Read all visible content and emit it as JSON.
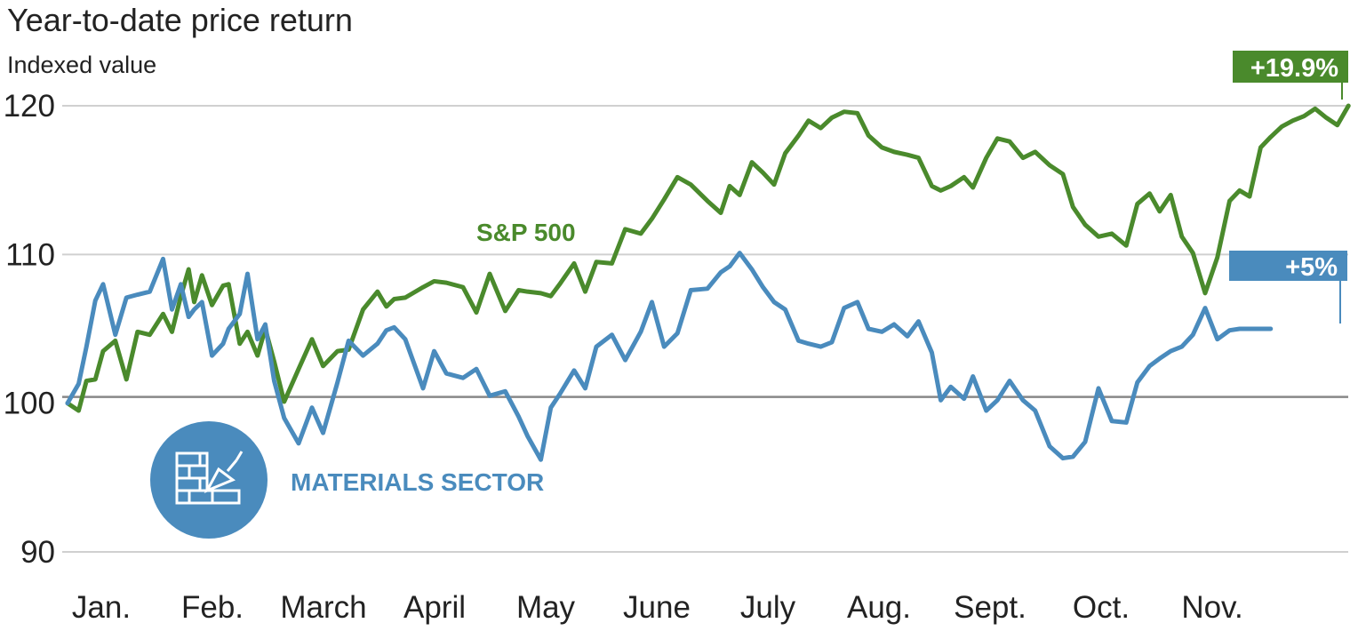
{
  "chart_data": {
    "type": "line",
    "title": "Year-to-date price return",
    "subtitle": "Indexed value",
    "ylabel": "Indexed value",
    "ylim": [
      90,
      120
    ],
    "y_ticks": [
      90,
      100,
      110,
      120
    ],
    "baseline": 100,
    "xlabel": "",
    "x_ticks": [
      "Jan.",
      "Feb.",
      "March",
      "April",
      "May",
      "June",
      "July",
      "Aug.",
      "Sept.",
      "Oct.",
      "Nov."
    ],
    "x_range": [
      0,
      10.9
    ],
    "colors": {
      "sp500": "#4a8a2c",
      "materials": "#4a8bbd",
      "grid": "#d0d0d0",
      "baseline": "#888888"
    },
    "icon": "brick-wall-trowel-icon",
    "series": [
      {
        "name": "S&P 500",
        "label": "S&P 500",
        "end_label": "+19.9%",
        "x": [
          0.0,
          0.1,
          0.17,
          0.25,
          0.32,
          0.43,
          0.53,
          0.63,
          0.74,
          0.86,
          0.94,
          1.02,
          1.09,
          1.14,
          1.21,
          1.3,
          1.4,
          1.45,
          1.55,
          1.62,
          1.71,
          1.78,
          1.86,
          1.95,
          2.08,
          2.2,
          2.3,
          2.43,
          2.53,
          2.66,
          2.79,
          2.87,
          2.94,
          3.04,
          3.2,
          3.3,
          3.41,
          3.56,
          3.68,
          3.8,
          3.94,
          4.06,
          4.14,
          4.26,
          4.35,
          4.43,
          4.56,
          4.66,
          4.76,
          4.9,
          5.02,
          5.16,
          5.26,
          5.37,
          5.49,
          5.61,
          5.76,
          5.88,
          5.96,
          6.05,
          6.16,
          6.26,
          6.36,
          6.46,
          6.58,
          6.67,
          6.78,
          6.88,
          6.99,
          7.11,
          7.21,
          7.33,
          7.44,
          7.56,
          7.66,
          7.78,
          7.86,
          7.95,
          8.07,
          8.15,
          8.27,
          8.37,
          8.48,
          8.6,
          8.71,
          8.84,
          8.96,
          9.05,
          9.16,
          9.28,
          9.4,
          9.53,
          9.63,
          9.74,
          9.83,
          9.93,
          10.03,
          10.13,
          10.24,
          10.35,
          10.46,
          10.55,
          10.64,
          10.74,
          10.83
        ],
        "values": [
          100.0,
          99.5,
          101.5,
          101.6,
          103.5,
          104.2,
          101.6,
          104.8,
          104.6,
          106.0,
          104.8,
          107.2,
          109.0,
          106.8,
          108.6,
          106.6,
          107.9,
          108.0,
          104.0,
          104.8,
          103.2,
          105.0,
          102.8,
          100.1,
          102.3,
          104.3,
          102.5,
          103.5,
          103.6,
          106.3,
          107.5,
          106.5,
          107.0,
          107.1,
          107.8,
          108.2,
          108.1,
          107.8,
          106.1,
          108.7,
          106.2,
          107.6,
          107.5,
          107.4,
          107.2,
          108.0,
          109.4,
          107.5,
          109.5,
          109.4,
          111.7,
          111.4,
          112.4,
          113.7,
          115.2,
          114.7,
          113.6,
          112.8,
          114.6,
          114.0,
          116.2,
          115.5,
          114.7,
          116.8,
          118.0,
          119.0,
          118.5,
          119.2,
          119.6,
          119.5,
          118.0,
          117.2,
          116.9,
          116.7,
          116.5,
          114.6,
          114.3,
          114.6,
          115.2,
          114.5,
          116.5,
          117.8,
          117.6,
          116.5,
          116.9,
          116.0,
          115.4,
          113.2,
          112.0,
          111.2,
          111.4,
          110.6,
          113.4,
          114.1,
          112.9,
          114.0,
          111.2,
          110.1,
          107.4,
          109.8,
          113.6,
          114.3,
          113.9,
          117.2,
          117.9
        ],
        "extra_values": [
          118.6,
          119.0,
          119.3,
          119.8,
          119.2,
          118.7,
          120.0
        ],
        "extra_x": [
          10.93,
          11.03,
          11.13,
          11.23,
          11.33,
          11.43,
          11.53
        ]
      },
      {
        "name": "Materials Sector",
        "label": "MATERIALS SECTOR",
        "end_label": "+5%",
        "x": [
          0.0,
          0.1,
          0.17,
          0.25,
          0.32,
          0.43,
          0.53,
          0.63,
          0.74,
          0.86,
          0.94,
          1.02,
          1.09,
          1.14,
          1.21,
          1.3,
          1.4,
          1.45,
          1.55,
          1.62,
          1.71,
          1.78,
          1.86,
          1.95,
          2.08,
          2.2,
          2.3,
          2.43,
          2.53,
          2.66,
          2.79,
          2.87,
          2.94,
          3.04,
          3.2,
          3.3,
          3.41,
          3.56,
          3.68,
          3.8,
          3.94,
          4.06,
          4.14,
          4.26,
          4.35,
          4.43,
          4.56,
          4.66,
          4.76,
          4.9,
          5.02,
          5.16,
          5.26,
          5.37,
          5.49,
          5.61,
          5.76,
          5.88,
          5.96,
          6.05,
          6.16,
          6.26,
          6.36,
          6.46,
          6.58,
          6.67,
          6.78,
          6.88,
          6.99,
          7.11,
          7.21,
          7.33,
          7.44,
          7.56,
          7.66,
          7.78,
          7.86,
          7.95,
          8.07,
          8.15,
          8.27,
          8.37,
          8.48,
          8.6,
          8.71,
          8.84,
          8.96,
          9.05,
          9.16,
          9.28,
          9.4,
          9.53,
          9.63,
          9.74,
          9.83,
          9.93,
          10.03,
          10.13,
          10.24,
          10.35,
          10.46,
          10.55,
          10.64,
          10.74,
          10.83
        ],
        "values": [
          100.0,
          101.3,
          103.8,
          106.9,
          108.0,
          104.6,
          107.1,
          107.3,
          107.5,
          109.7,
          106.3,
          108.0,
          105.8,
          106.3,
          106.8,
          103.2,
          104.0,
          105.0,
          106.0,
          108.7,
          104.3,
          105.3,
          101.5,
          99.0,
          97.3,
          99.7,
          98.0,
          101.4,
          104.2,
          103.2,
          104.0,
          104.9,
          105.1,
          104.3,
          101.0,
          103.5,
          102.0,
          101.7,
          102.3,
          100.5,
          100.8,
          99.1,
          97.8,
          96.2,
          99.7,
          100.6,
          102.2,
          101.0,
          103.8,
          104.6,
          102.9,
          104.8,
          106.8,
          103.8,
          104.7,
          107.6,
          107.7,
          108.8,
          109.2,
          110.1,
          109.0,
          107.8,
          106.8,
          106.3,
          104.2,
          104.0,
          103.8,
          104.1,
          106.4,
          106.8,
          105.0,
          104.8,
          105.3,
          104.5,
          105.5,
          103.4,
          100.2,
          101.1,
          100.3,
          101.8,
          99.5,
          100.2,
          101.5,
          100.2,
          99.5,
          97.1,
          96.3,
          96.4,
          97.4,
          101.0,
          98.8,
          98.7,
          101.4,
          102.5,
          103.0,
          103.5,
          103.8,
          104.6,
          106.4,
          104.3,
          104.9,
          105.0,
          105.0,
          105.0,
          105.0
        ],
        "extra_values": [],
        "extra_x": []
      }
    ]
  }
}
